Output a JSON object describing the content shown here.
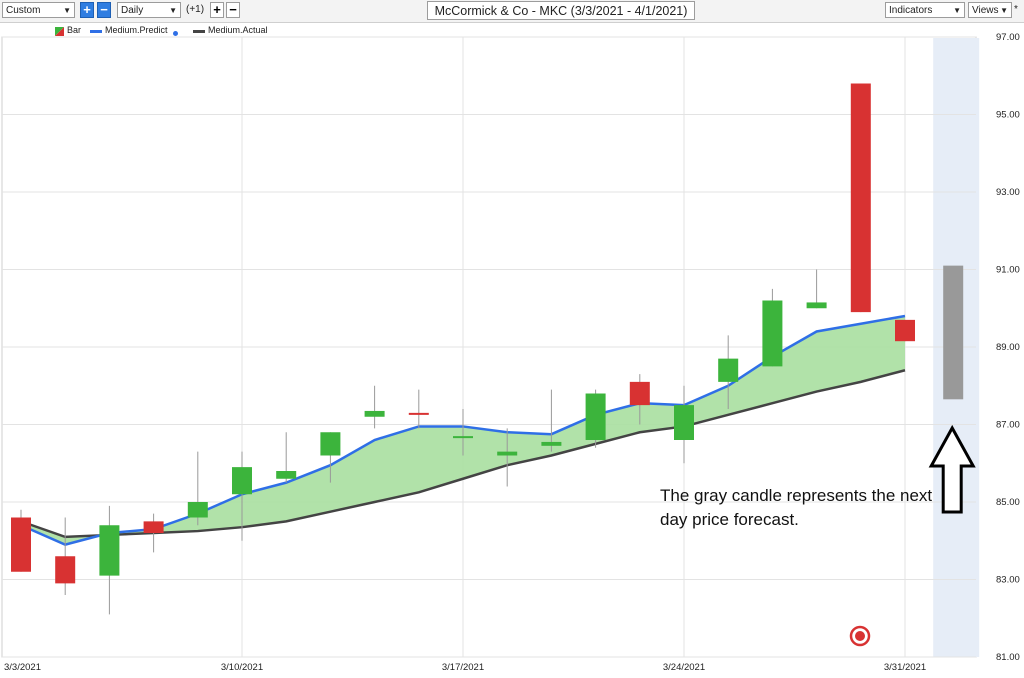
{
  "toolbar": {
    "range_select": "Custom",
    "interval_select": "Daily",
    "offset_text": "(+1)",
    "plus_label": "+",
    "minus_label": "−",
    "indicators_label": "Indicators",
    "views_label": "Views",
    "views_marker": "*"
  },
  "chart_title": "McCormick & Co - MKC (3/3/2021 - 4/1/2021)",
  "legend": {
    "bar_label": "Bar",
    "predict_label": "Medium.Predict",
    "actual_label": "Medium.Actual"
  },
  "annotation": {
    "text": "The gray candle represents the next day price forecast."
  },
  "colors": {
    "up": "#3cb43c",
    "down": "#d83232",
    "forecast": "#999999",
    "predict_line": "#2f6fe6",
    "actual_line": "#444444",
    "fill": "#a8dfa0",
    "forecast_band": "#e6edf7"
  },
  "chart_data": {
    "type": "candlestick",
    "title": "McCormick & Co - MKC (3/3/2021 - 4/1/2021)",
    "ylim": [
      81,
      97
    ],
    "y_ticks": [
      "97.00",
      "95.00",
      "93.00",
      "91.00",
      "89.00",
      "87.00",
      "85.00",
      "83.00",
      "81.00"
    ],
    "x_tick_labels": [
      "3/3/2021",
      "3/10/2021",
      "3/17/2021",
      "3/24/2021",
      "3/31/2021"
    ],
    "grid": true,
    "candles": [
      {
        "open": 84.6,
        "high": 84.8,
        "low": 83.2,
        "close": 83.2
      },
      {
        "open": 83.6,
        "high": 84.6,
        "low": 82.6,
        "close": 82.9
      },
      {
        "open": 83.1,
        "high": 84.9,
        "low": 82.1,
        "close": 84.4
      },
      {
        "open": 84.5,
        "high": 84.7,
        "low": 83.7,
        "close": 84.2
      },
      {
        "open": 84.6,
        "high": 86.3,
        "low": 84.4,
        "close": 85.0
      },
      {
        "open": 85.2,
        "high": 86.3,
        "low": 84.0,
        "close": 85.9
      },
      {
        "open": 85.6,
        "high": 86.8,
        "low": 85.5,
        "close": 85.8
      },
      {
        "open": 86.2,
        "high": 86.8,
        "low": 85.5,
        "close": 86.8
      },
      {
        "open": 87.2,
        "high": 88.0,
        "low": 86.9,
        "close": 87.35
      },
      {
        "open": 87.3,
        "high": 87.9,
        "low": 86.9,
        "close": 87.25
      },
      {
        "open": 86.7,
        "high": 87.4,
        "low": 86.2,
        "close": 86.7
      },
      {
        "open": 86.2,
        "high": 86.9,
        "low": 85.4,
        "close": 86.3
      },
      {
        "open": 86.45,
        "high": 87.9,
        "low": 86.3,
        "close": 86.55
      },
      {
        "open": 86.6,
        "high": 87.9,
        "low": 86.4,
        "close": 87.8
      },
      {
        "open": 88.1,
        "high": 88.3,
        "low": 87.0,
        "close": 87.5
      },
      {
        "open": 86.6,
        "high": 88.0,
        "low": 86.0,
        "close": 87.5
      },
      {
        "open": 88.1,
        "high": 89.3,
        "low": 87.4,
        "close": 88.7
      },
      {
        "open": 88.5,
        "high": 90.5,
        "low": 88.5,
        "close": 90.2
      },
      {
        "open": 90.0,
        "high": 91.0,
        "low": 90.0,
        "close": 90.15
      },
      {
        "open": 95.8,
        "high": 95.8,
        "low": 89.9,
        "close": 89.9
      },
      {
        "open": 89.7,
        "high": 89.7,
        "low": 89.15,
        "close": 89.15
      }
    ],
    "forecast_candle": {
      "open": 91.1,
      "high": 91.1,
      "low": 87.65,
      "close": 87.65
    },
    "series": [
      {
        "name": "Medium.Predict",
        "values": [
          84.4,
          83.9,
          84.2,
          84.3,
          84.7,
          85.2,
          85.5,
          85.95,
          86.6,
          86.95,
          86.95,
          86.8,
          86.75,
          87.25,
          87.55,
          87.5,
          88.0,
          88.75,
          89.4,
          89.6,
          89.8
        ]
      },
      {
        "name": "Medium.Actual",
        "values": [
          84.5,
          84.1,
          84.15,
          84.2,
          84.25,
          84.35,
          84.5,
          84.75,
          85.0,
          85.25,
          85.6,
          85.95,
          86.2,
          86.5,
          86.8,
          86.95,
          87.25,
          87.55,
          87.85,
          88.1,
          88.4
        ]
      }
    ]
  }
}
